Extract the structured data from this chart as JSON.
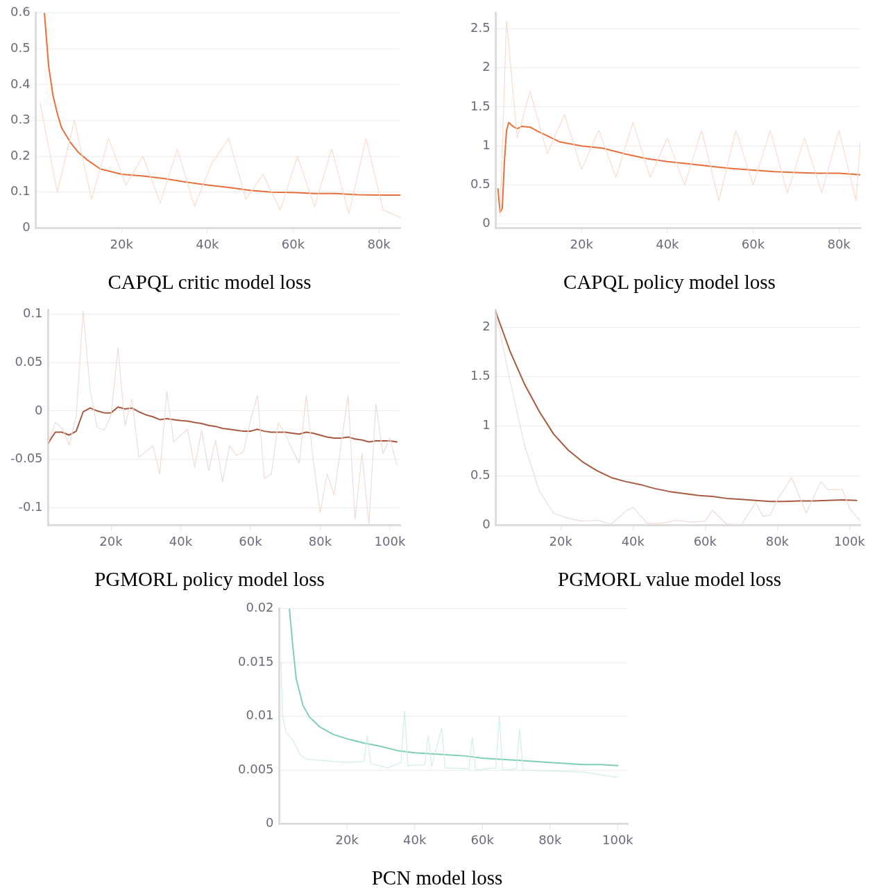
{
  "chart_data": [
    {
      "type": "line",
      "title": "CAPQL critic model loss",
      "grid": "y",
      "legend": false,
      "xlim": [
        0,
        85000
      ],
      "xticks": [
        {
          "value": 20000,
          "label": "20k"
        },
        {
          "value": 40000,
          "label": "40k"
        },
        {
          "value": 60000,
          "label": "60k"
        },
        {
          "value": 80000,
          "label": "80k"
        }
      ],
      "ylim": [
        0,
        0.6
      ],
      "yticks": [
        0,
        0.1,
        0.2,
        0.3,
        0.4,
        0.5,
        0.6
      ],
      "series": [
        {
          "color": "#fadbcb",
          "x": [
            1000,
            5000,
            9000,
            13000,
            17000,
            21000,
            25000,
            29000,
            33000,
            37000,
            41000,
            45000,
            49000,
            53000,
            57000,
            61000,
            65000,
            69000,
            73000,
            77000,
            81000,
            85000
          ],
          "values": [
            0.35,
            0.1,
            0.3,
            0.08,
            0.25,
            0.12,
            0.2,
            0.07,
            0.22,
            0.06,
            0.18,
            0.25,
            0.08,
            0.15,
            0.05,
            0.2,
            0.06,
            0.22,
            0.04,
            0.25,
            0.05,
            0.03
          ]
        },
        {
          "color": "#e8703a",
          "x": [
            2000,
            3000,
            4000,
            5000,
            6000,
            8000,
            10000,
            12000,
            15000,
            20000,
            25000,
            30000,
            35000,
            40000,
            45000,
            50000,
            55000,
            60000,
            65000,
            70000,
            75000,
            80000,
            85000
          ],
          "values": [
            0.6,
            0.45,
            0.37,
            0.32,
            0.28,
            0.24,
            0.21,
            0.19,
            0.165,
            0.15,
            0.145,
            0.138,
            0.128,
            0.12,
            0.113,
            0.105,
            0.1,
            0.099,
            0.096,
            0.096,
            0.093,
            0.092,
            0.092
          ]
        }
      ]
    },
    {
      "type": "line",
      "title": "CAPQL policy model loss",
      "grid": "y",
      "legend": false,
      "xlim": [
        0,
        85000
      ],
      "xticks": [
        {
          "value": 20000,
          "label": "20k"
        },
        {
          "value": 40000,
          "label": "40k"
        },
        {
          "value": 60000,
          "label": "60k"
        },
        {
          "value": 80000,
          "label": "80k"
        }
      ],
      "ylim": [
        -0.05,
        2.7
      ],
      "yticks": [
        0,
        0.5,
        1,
        1.5,
        2,
        2.5
      ],
      "series": [
        {
          "color": "#fadbcb",
          "x": [
            1000,
            2500,
            5000,
            8000,
            12000,
            16000,
            20000,
            24000,
            28000,
            32000,
            36000,
            40000,
            44000,
            48000,
            52000,
            56000,
            60000,
            64000,
            68000,
            72000,
            76000,
            80000,
            84000,
            85000
          ],
          "values": [
            0.1,
            2.6,
            1.1,
            1.7,
            0.9,
            1.4,
            0.7,
            1.2,
            0.6,
            1.3,
            0.6,
            1.1,
            0.5,
            1.2,
            0.3,
            1.2,
            0.5,
            1.2,
            0.4,
            1.1,
            0.4,
            1.2,
            0.3,
            1.05
          ]
        },
        {
          "color": "#e8703a",
          "x": [
            500,
            1000,
            1500,
            2000,
            2500,
            3000,
            4000,
            5000,
            6000,
            8000,
            10000,
            12000,
            15000,
            20000,
            25000,
            30000,
            35000,
            40000,
            45000,
            50000,
            55000,
            60000,
            65000,
            70000,
            75000,
            80000,
            85000
          ],
          "values": [
            0.45,
            0.15,
            0.2,
            0.8,
            1.2,
            1.3,
            1.25,
            1.22,
            1.25,
            1.24,
            1.18,
            1.13,
            1.05,
            1.0,
            0.97,
            0.9,
            0.84,
            0.8,
            0.77,
            0.74,
            0.71,
            0.69,
            0.67,
            0.66,
            0.65,
            0.65,
            0.63
          ]
        }
      ]
    },
    {
      "type": "line",
      "title": "PGMORL policy model loss",
      "grid": "y",
      "legend": false,
      "xlim": [
        2000,
        103000
      ],
      "xticks": [
        {
          "value": 20000,
          "label": "20k"
        },
        {
          "value": 40000,
          "label": "40k"
        },
        {
          "value": 60000,
          "label": "60k"
        },
        {
          "value": 80000,
          "label": "80k"
        },
        {
          "value": 100000,
          "label": "100k"
        }
      ],
      "ylim": [
        -0.118,
        0.104
      ],
      "yticks": [
        -0.1,
        -0.05,
        0,
        0.05,
        0.1
      ],
      "x": [
        2000,
        4000,
        6000,
        8000,
        10000,
        12000,
        14000,
        16000,
        18000,
        20000,
        22000,
        24000,
        26000,
        28000,
        30000,
        32000,
        34000,
        36000,
        38000,
        40000,
        42000,
        44000,
        46000,
        48000,
        50000,
        52000,
        54000,
        56000,
        58000,
        60000,
        62000,
        64000,
        66000,
        68000,
        70000,
        72000,
        74000,
        76000,
        78000,
        80000,
        82000,
        84000,
        86000,
        88000,
        90000,
        92000,
        94000,
        96000,
        98000,
        100000,
        102000
      ],
      "series": [
        {
          "color": "#eddcd4",
          "values": [
            -0.033,
            -0.012,
            -0.018,
            -0.035,
            -0.006,
            0.103,
            0.022,
            -0.017,
            -0.02,
            -0.005,
            0.065,
            -0.015,
            0.012,
            -0.048,
            -0.042,
            -0.036,
            -0.065,
            0.02,
            -0.032,
            -0.025,
            -0.019,
            -0.058,
            -0.02,
            -0.062,
            -0.03,
            -0.073,
            -0.036,
            -0.046,
            -0.042,
            -0.01,
            0.016,
            -0.07,
            -0.065,
            -0.012,
            -0.024,
            -0.04,
            -0.054,
            0.016,
            -0.05,
            -0.105,
            -0.065,
            -0.087,
            -0.035,
            0.016,
            -0.112,
            -0.044,
            -0.117,
            0.007,
            -0.044,
            -0.028,
            -0.056
          ]
        },
        {
          "color": "#a85a40",
          "values": [
            -0.033,
            -0.022,
            -0.022,
            -0.025,
            -0.021,
            -0.001,
            0.003,
            0.0,
            -0.002,
            -0.002,
            0.004,
            0.002,
            0.003,
            -0.001,
            -0.004,
            -0.006,
            -0.009,
            -0.008,
            -0.009,
            -0.01,
            -0.0105,
            -0.012,
            -0.013,
            -0.015,
            -0.016,
            -0.018,
            -0.019,
            -0.02,
            -0.021,
            -0.021,
            -0.019,
            -0.021,
            -0.022,
            -0.022,
            -0.022,
            -0.023,
            -0.024,
            -0.022,
            -0.023,
            -0.025,
            -0.027,
            -0.028,
            -0.028,
            -0.027,
            -0.029,
            -0.03,
            -0.032,
            -0.031,
            -0.031,
            -0.031,
            -0.032
          ]
        }
      ]
    },
    {
      "type": "line",
      "title": "PGMORL value model loss",
      "grid": "y",
      "legend": false,
      "xlim": [
        2000,
        103000
      ],
      "xticks": [
        {
          "value": 20000,
          "label": "20k"
        },
        {
          "value": 40000,
          "label": "40k"
        },
        {
          "value": 60000,
          "label": "60k"
        },
        {
          "value": 80000,
          "label": "80k"
        },
        {
          "value": 100000,
          "label": "100k"
        }
      ],
      "ylim": [
        0,
        2.17
      ],
      "yticks": [
        0,
        0.5,
        1,
        1.5,
        2
      ],
      "series": [
        {
          "color": "#eddcd4",
          "x": [
            2000,
            6000,
            10000,
            14000,
            18000,
            22000,
            26000,
            30000,
            34000,
            38000,
            40000,
            44000,
            48000,
            52000,
            56000,
            60000,
            62000,
            66000,
            70000,
            74000,
            76000,
            78000,
            80000,
            84000,
            88000,
            92000,
            94000,
            98000,
            100000,
            103000
          ],
          "values": [
            2.15,
            1.45,
            0.8,
            0.35,
            0.12,
            0.07,
            0.04,
            0.05,
            0.01,
            0.14,
            0.18,
            0.02,
            0.02,
            0.05,
            0.03,
            0.04,
            0.15,
            0.01,
            0.0,
            0.23,
            0.09,
            0.1,
            0.26,
            0.48,
            0.12,
            0.44,
            0.36,
            0.36,
            0.17,
            0.04
          ]
        },
        {
          "color": "#a85a40",
          "x": [
            2000,
            6000,
            10000,
            14000,
            18000,
            22000,
            26000,
            30000,
            34000,
            38000,
            42000,
            46000,
            50000,
            54000,
            58000,
            62000,
            66000,
            70000,
            74000,
            78000,
            82000,
            86000,
            90000,
            94000,
            98000,
            102000
          ],
          "values": [
            2.15,
            1.75,
            1.42,
            1.15,
            0.92,
            0.76,
            0.64,
            0.55,
            0.48,
            0.44,
            0.41,
            0.37,
            0.34,
            0.32,
            0.3,
            0.29,
            0.27,
            0.26,
            0.25,
            0.24,
            0.24,
            0.245,
            0.245,
            0.25,
            0.255,
            0.25
          ]
        }
      ]
    },
    {
      "type": "line",
      "title": "PCN model loss",
      "grid": "y",
      "legend": false,
      "xlim": [
        0,
        103000
      ],
      "xticks": [
        {
          "value": 20000,
          "label": "20k"
        },
        {
          "value": 40000,
          "label": "40k"
        },
        {
          "value": 60000,
          "label": "60k"
        },
        {
          "value": 80000,
          "label": "80k"
        },
        {
          "value": 100000,
          "label": "100k"
        }
      ],
      "ylim": [
        0,
        0.02
      ],
      "yticks": [
        0,
        0.005,
        0.01,
        0.015,
        0.02
      ],
      "series": [
        {
          "color": "#d2eee4",
          "x": [
            500,
            1000,
            2000,
            4000,
            6000,
            8000,
            12000,
            16000,
            20000,
            25000,
            26000,
            27000,
            32000,
            36000,
            37000,
            38000,
            43000,
            44000,
            45000,
            48000,
            49000,
            56000,
            57000,
            58000,
            64000,
            65000,
            66000,
            70000,
            71000,
            72000,
            80000,
            90000,
            100000
          ],
          "values": [
            0.015,
            0.01,
            0.0085,
            0.0078,
            0.0065,
            0.006,
            0.0059,
            0.0058,
            0.0057,
            0.0058,
            0.0082,
            0.0056,
            0.0052,
            0.0057,
            0.0105,
            0.0054,
            0.0055,
            0.0082,
            0.0053,
            0.0089,
            0.0052,
            0.0051,
            0.008,
            0.005,
            0.0052,
            0.01,
            0.005,
            0.0051,
            0.0088,
            0.005,
            0.0049,
            0.0048,
            0.0043
          ]
        },
        {
          "color": "#7ecfb6",
          "x": [
            3000,
            4000,
            5000,
            7000,
            9000,
            12000,
            16000,
            20000,
            25000,
            30000,
            35000,
            40000,
            45000,
            50000,
            55000,
            60000,
            65000,
            70000,
            75000,
            80000,
            85000,
            90000,
            95000,
            100000
          ],
          "values": [
            0.02,
            0.0165,
            0.0135,
            0.011,
            0.0099,
            0.009,
            0.0083,
            0.0079,
            0.0075,
            0.0072,
            0.0068,
            0.0066,
            0.0065,
            0.0064,
            0.0063,
            0.0061,
            0.006,
            0.0059,
            0.0058,
            0.0057,
            0.0056,
            0.0055,
            0.0055,
            0.0054
          ]
        }
      ]
    }
  ]
}
